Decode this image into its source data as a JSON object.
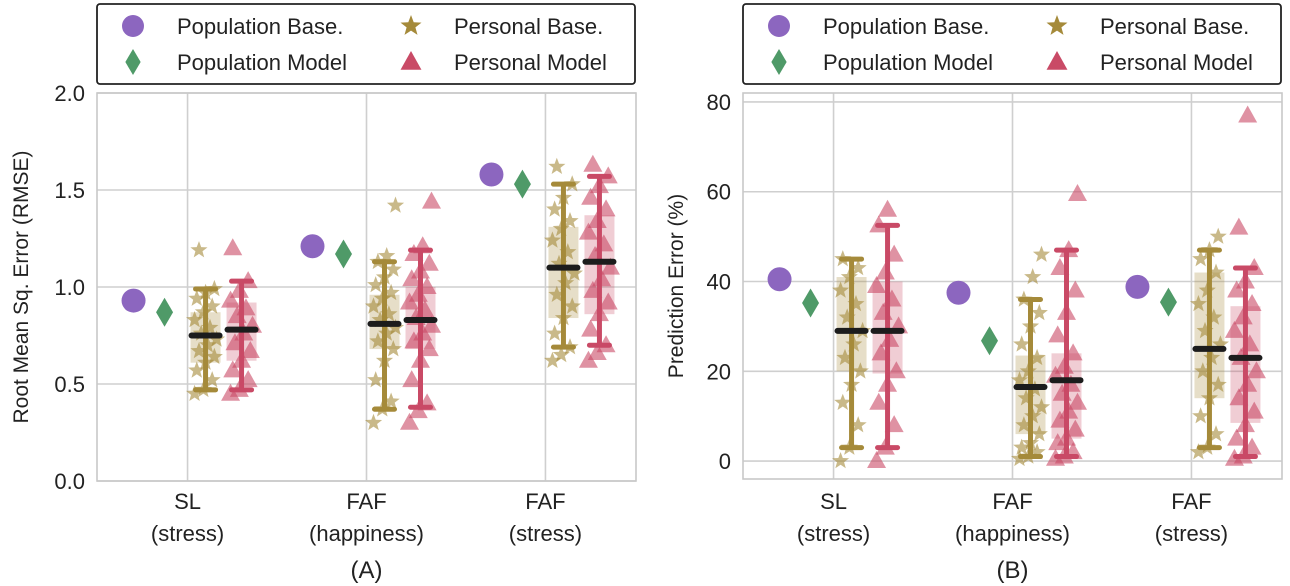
{
  "legend_entries": [
    {
      "label": "Population Base.",
      "marker": "circle",
      "color": "#8c66bf"
    },
    {
      "label": "Personal Base.",
      "marker": "star",
      "color": "#a58a3a"
    },
    {
      "label": "Population Model",
      "marker": "diamond",
      "color": "#4f9a68"
    },
    {
      "label": "Personal Model",
      "marker": "triangle",
      "color": "#c94a66"
    }
  ],
  "chart_data": [
    {
      "type": "scatter",
      "panel_label": "(A)",
      "ylabel": "Root Mean Sq. Error (RMSE)",
      "ylim": [
        0,
        2.0
      ],
      "yticks": [
        0.0,
        0.5,
        1.0,
        1.5,
        2.0
      ],
      "ytick_labels": [
        "0.0",
        "0.5",
        "1.0",
        "1.5",
        "2.0"
      ],
      "categories": [
        [
          "SL",
          "(stress)"
        ],
        [
          "FAF",
          "(happiness)"
        ],
        [
          "FAF",
          "(stress)"
        ]
      ],
      "grid": true,
      "legend": "top",
      "population_baseline": [
        0.93,
        1.21,
        1.58
      ],
      "population_model": [
        0.87,
        1.17,
        1.53
      ],
      "personal_baseline": [
        {
          "median": 0.75,
          "q1": 0.61,
          "q3": 0.87,
          "whisker_low": 0.47,
          "whisker_high": 0.99,
          "points": [
            0.45,
            0.47,
            0.52,
            0.57,
            0.61,
            0.64,
            0.67,
            0.7,
            0.73,
            0.76,
            0.79,
            0.83,
            0.87,
            0.9,
            0.94,
            0.97,
            0.99,
            1.19
          ]
        },
        {
          "median": 0.81,
          "q1": 0.68,
          "q3": 0.96,
          "whisker_low": 0.37,
          "whisker_high": 1.13,
          "points": [
            0.3,
            0.37,
            0.41,
            0.52,
            0.62,
            0.68,
            0.72,
            0.76,
            0.79,
            0.83,
            0.86,
            0.9,
            0.94,
            0.97,
            1.01,
            1.05,
            1.09,
            1.13,
            1.16,
            1.42
          ]
        },
        {
          "median": 1.1,
          "q1": 0.84,
          "q3": 1.31,
          "whisker_low": 0.69,
          "whisker_high": 1.53,
          "points": [
            0.62,
            0.65,
            0.69,
            0.76,
            0.84,
            0.9,
            0.96,
            1.02,
            1.07,
            1.12,
            1.18,
            1.24,
            1.3,
            1.34,
            1.4,
            1.46,
            1.53,
            1.62
          ]
        }
      ],
      "personal_model": [
        {
          "median": 0.78,
          "q1": 0.62,
          "q3": 0.92,
          "whisker_low": 0.47,
          "whisker_high": 1.03,
          "points": [
            0.45,
            0.47,
            0.52,
            0.57,
            0.62,
            0.67,
            0.71,
            0.76,
            0.8,
            0.85,
            0.89,
            0.93,
            0.98,
            1.03,
            1.2
          ]
        },
        {
          "median": 0.83,
          "q1": 0.68,
          "q3": 1.0,
          "whisker_low": 0.38,
          "whisker_high": 1.19,
          "points": [
            0.3,
            0.36,
            0.4,
            0.52,
            0.62,
            0.68,
            0.72,
            0.76,
            0.8,
            0.84,
            0.88,
            0.92,
            0.96,
            1.0,
            1.04,
            1.08,
            1.12,
            1.17,
            1.21,
            1.44
          ]
        },
        {
          "median": 1.13,
          "q1": 0.86,
          "q3": 1.37,
          "whisker_low": 0.7,
          "whisker_high": 1.57,
          "points": [
            0.62,
            0.66,
            0.7,
            0.78,
            0.86,
            0.92,
            0.98,
            1.04,
            1.1,
            1.16,
            1.22,
            1.28,
            1.34,
            1.4,
            1.46,
            1.52,
            1.57,
            1.63
          ]
        }
      ]
    },
    {
      "type": "scatter",
      "panel_label": "(B)",
      "ylabel": "Prediction Error (%)",
      "ylim": [
        -4,
        82
      ],
      "yticks": [
        0,
        20,
        40,
        60,
        80
      ],
      "ytick_labels": [
        "0",
        "20",
        "40",
        "60",
        "80"
      ],
      "categories": [
        [
          "SL",
          "(stress)"
        ],
        [
          "FAF",
          "(happiness)"
        ],
        [
          "FAF",
          "(stress)"
        ]
      ],
      "grid": true,
      "legend": "top",
      "population_baseline": [
        40.5,
        37.5,
        38.8
      ],
      "population_model": [
        35.2,
        26.8,
        35.4
      ],
      "personal_baseline": [
        {
          "median": 29.0,
          "q1": 20.0,
          "q3": 41.0,
          "whisker_low": 3.0,
          "whisker_high": 45.0,
          "points": [
            0.0,
            3.0,
            8.0,
            13.0,
            17.0,
            20.0,
            23.0,
            26.0,
            29.0,
            32.0,
            35.0,
            38.0,
            41.0,
            43.0,
            45.0
          ]
        },
        {
          "median": 16.5,
          "q1": 6.0,
          "q3": 23.5,
          "whisker_low": 1.0,
          "whisker_high": 36.0,
          "points": [
            0.5,
            1.0,
            2.0,
            3.0,
            4.0,
            6.0,
            8.0,
            10.0,
            12.0,
            14.0,
            16.0,
            18.0,
            20.0,
            23.0,
            26.0,
            30.0,
            33.0,
            36.0,
            41.0,
            46.0
          ]
        },
        {
          "median": 25.0,
          "q1": 14.0,
          "q3": 42.0,
          "whisker_low": 3.0,
          "whisker_high": 47.0,
          "points": [
            2.0,
            3.0,
            6.0,
            10.0,
            14.0,
            17.0,
            20.0,
            23.0,
            26.0,
            29.0,
            32.0,
            35.0,
            38.0,
            42.0,
            45.0,
            47.0,
            50.0
          ]
        }
      ],
      "personal_model": [
        {
          "median": 29.0,
          "q1": 19.5,
          "q3": 40.0,
          "whisker_low": 3.0,
          "whisker_high": 52.5,
          "points": [
            0.0,
            3.0,
            8.0,
            13.0,
            17.0,
            20.0,
            24.0,
            27.0,
            30.0,
            33.0,
            36.0,
            39.0,
            42.0,
            46.0,
            52.5,
            56.0
          ]
        },
        {
          "median": 18.0,
          "q1": 5.0,
          "q3": 24.0,
          "whisker_low": 1.0,
          "whisker_high": 47.0,
          "points": [
            0.5,
            1.0,
            2.0,
            4.0,
            5.0,
            7.0,
            9.0,
            11.0,
            13.0,
            15.0,
            17.0,
            19.0,
            21.0,
            24.0,
            28.0,
            33.0,
            38.0,
            43.0,
            47.0,
            59.5
          ]
        },
        {
          "median": 23.0,
          "q1": 8.5,
          "q3": 34.5,
          "whisker_low": 1.0,
          "whisker_high": 43.0,
          "points": [
            0.5,
            1.0,
            3.0,
            5.0,
            8.0,
            11.0,
            14.0,
            17.0,
            20.0,
            23.0,
            26.0,
            29.0,
            32.0,
            35.0,
            38.0,
            40.0,
            43.0,
            52.0,
            77.0
          ]
        }
      ]
    }
  ]
}
